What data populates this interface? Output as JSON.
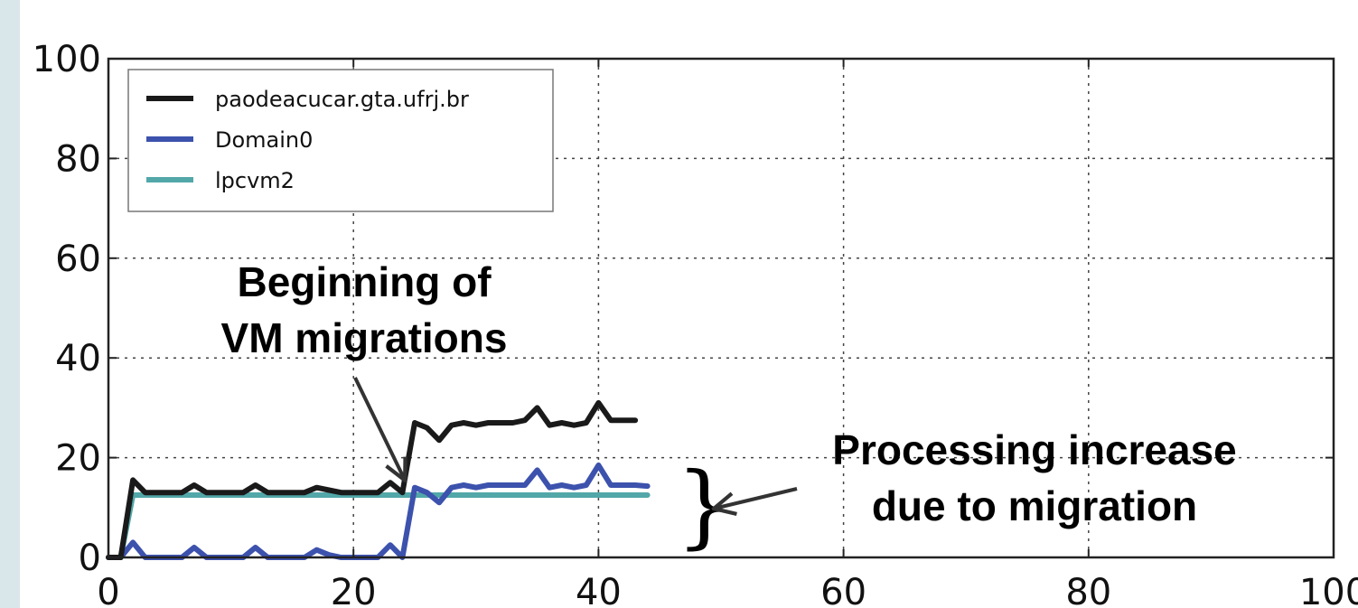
{
  "chart_data": {
    "type": "line",
    "title": "",
    "xlabel": "",
    "ylabel": "",
    "xlim": [
      0,
      100
    ],
    "ylim": [
      0,
      100
    ],
    "x_ticks": [
      0,
      20,
      40,
      60,
      80,
      100
    ],
    "y_ticks": [
      0,
      20,
      40,
      60,
      80,
      100
    ],
    "grid": true,
    "legend_position": "top-left",
    "series": [
      {
        "name": "paodeacucar.gta.ufrj.br",
        "color": "#1a1a1a",
        "points": [
          [
            0,
            0
          ],
          [
            1,
            0
          ],
          [
            2,
            15.5
          ],
          [
            3,
            13
          ],
          [
            4,
            13
          ],
          [
            5,
            13
          ],
          [
            6,
            13
          ],
          [
            7,
            14.5
          ],
          [
            8,
            13
          ],
          [
            9,
            13
          ],
          [
            10,
            13
          ],
          [
            11,
            13
          ],
          [
            12,
            14.5
          ],
          [
            13,
            13
          ],
          [
            14,
            13
          ],
          [
            15,
            13
          ],
          [
            16,
            13
          ],
          [
            17,
            14
          ],
          [
            18,
            13.5
          ],
          [
            19,
            13
          ],
          [
            20,
            13
          ],
          [
            21,
            13
          ],
          [
            22,
            13
          ],
          [
            23,
            15
          ],
          [
            24,
            13
          ],
          [
            25,
            27
          ],
          [
            26,
            26
          ],
          [
            27,
            23.5
          ],
          [
            28,
            26.5
          ],
          [
            29,
            27
          ],
          [
            30,
            26.5
          ],
          [
            31,
            27
          ],
          [
            32,
            27
          ],
          [
            33,
            27
          ],
          [
            34,
            27.5
          ],
          [
            35,
            30
          ],
          [
            36,
            26.5
          ],
          [
            37,
            27
          ],
          [
            38,
            26.5
          ],
          [
            39,
            27
          ],
          [
            40,
            31
          ],
          [
            41,
            27.5
          ],
          [
            42,
            27.5
          ],
          [
            43,
            27.5
          ]
        ]
      },
      {
        "name": "Domain0",
        "color": "#3c52ad",
        "points": [
          [
            0,
            0
          ],
          [
            1,
            0
          ],
          [
            2,
            3
          ],
          [
            3,
            0
          ],
          [
            4,
            0
          ],
          [
            5,
            0
          ],
          [
            6,
            0
          ],
          [
            7,
            2
          ],
          [
            8,
            0
          ],
          [
            9,
            0
          ],
          [
            10,
            0
          ],
          [
            11,
            0
          ],
          [
            12,
            2
          ],
          [
            13,
            0
          ],
          [
            14,
            0
          ],
          [
            15,
            0
          ],
          [
            16,
            0
          ],
          [
            17,
            1.5
          ],
          [
            18,
            0.5
          ],
          [
            19,
            0
          ],
          [
            20,
            0
          ],
          [
            21,
            0
          ],
          [
            22,
            0
          ],
          [
            23,
            2.5
          ],
          [
            24,
            0
          ],
          [
            25,
            14
          ],
          [
            26,
            13
          ],
          [
            27,
            11
          ],
          [
            28,
            14
          ],
          [
            29,
            14.5
          ],
          [
            30,
            14
          ],
          [
            31,
            14.5
          ],
          [
            32,
            14.5
          ],
          [
            33,
            14.5
          ],
          [
            34,
            14.5
          ],
          [
            35,
            17.5
          ],
          [
            36,
            14
          ],
          [
            37,
            14.5
          ],
          [
            38,
            14
          ],
          [
            39,
            14.5
          ],
          [
            40,
            18.5
          ],
          [
            41,
            14.5
          ],
          [
            42,
            14.5
          ],
          [
            43,
            14.5
          ],
          [
            44,
            14.3
          ]
        ]
      },
      {
        "name": "lpcvm2",
        "color": "#52a7a8",
        "points": [
          [
            0,
            0
          ],
          [
            1,
            0
          ],
          [
            2,
            12.5
          ],
          [
            44,
            12.5
          ]
        ]
      }
    ],
    "annotations": [
      {
        "lines": [
          "Beginning of",
          "VM migrations"
        ],
        "target": [
          24.5,
          14
        ]
      },
      {
        "lines": [
          "Processing increase",
          "due to migration"
        ],
        "target": [
          47,
          12.5
        ]
      }
    ]
  }
}
